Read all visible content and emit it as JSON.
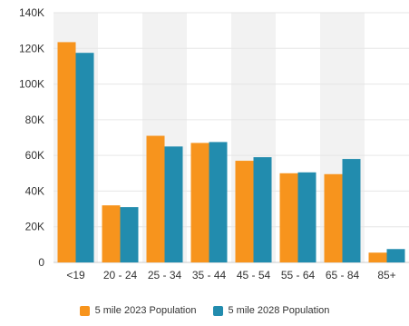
{
  "chart_data": {
    "type": "bar",
    "title": "",
    "xlabel": "",
    "ylabel": "",
    "categories": [
      "<19",
      "20 - 24",
      "25 - 34",
      "35 - 44",
      "45 - 54",
      "55 - 64",
      "65 - 84",
      "85+"
    ],
    "series": [
      {
        "name": "5 mile 2023 Population",
        "color": "#F7941D",
        "values": [
          123500,
          32000,
          71000,
          67000,
          57000,
          50000,
          49500,
          5500
        ]
      },
      {
        "name": "5 mile 2028 Population",
        "color": "#228CAE",
        "values": [
          117500,
          31000,
          65000,
          67500,
          59000,
          50500,
          58000,
          7500
        ]
      }
    ],
    "ylim": [
      0,
      140000
    ],
    "y_ticks": [
      {
        "value": 0,
        "label": "0"
      },
      {
        "value": 20000,
        "label": "20K"
      },
      {
        "value": 40000,
        "label": "40K"
      },
      {
        "value": 60000,
        "label": "60K"
      },
      {
        "value": 80000,
        "label": "80K"
      },
      {
        "value": 100000,
        "label": "100K"
      },
      {
        "value": 120000,
        "label": "120K"
      },
      {
        "value": 140000,
        "label": "140K"
      }
    ],
    "grid": true,
    "alternating_band_color": "#F2F2F2",
    "legend_position": "bottom-center"
  }
}
